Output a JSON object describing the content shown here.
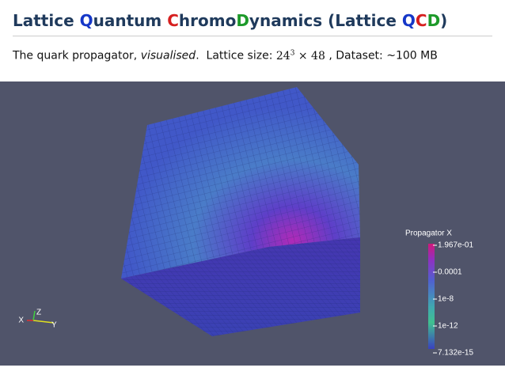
{
  "header": {
    "title": [
      {
        "text": "Lattice ",
        "color": "#1f3a5c"
      },
      {
        "text": "Q",
        "color": "#1537c8"
      },
      {
        "text": "uantum ",
        "color": "#1f3a5c"
      },
      {
        "text": "C",
        "color": "#d61f1f"
      },
      {
        "text": "hromo",
        "color": "#1f3a5c"
      },
      {
        "text": "D",
        "color": "#1d9a2a"
      },
      {
        "text": "ynamics (Lattice ",
        "color": "#1f3a5c"
      },
      {
        "text": "Q",
        "color": "#1537c8"
      },
      {
        "text": "C",
        "color": "#d61f1f"
      },
      {
        "text": "D",
        "color": "#1d9a2a"
      },
      {
        "text": ")",
        "color": "#1f3a5c"
      }
    ],
    "subtitle": {
      "lead": "The quark propagator, ",
      "emphasis": "visualised",
      "middle": ".  Lattice size: ",
      "base": "24",
      "exponent": "3",
      "times": " × 48",
      "tail": " , Dataset: ~100 MB"
    }
  },
  "visualisation": {
    "axes": {
      "x": "X",
      "y": "Y",
      "z": "Z"
    },
    "colorbar": {
      "title": "Propagator X",
      "labels": [
        "1.967e-01",
        "0.0001",
        "1e-8",
        "1e-12",
        "7.132e-15"
      ]
    }
  }
}
